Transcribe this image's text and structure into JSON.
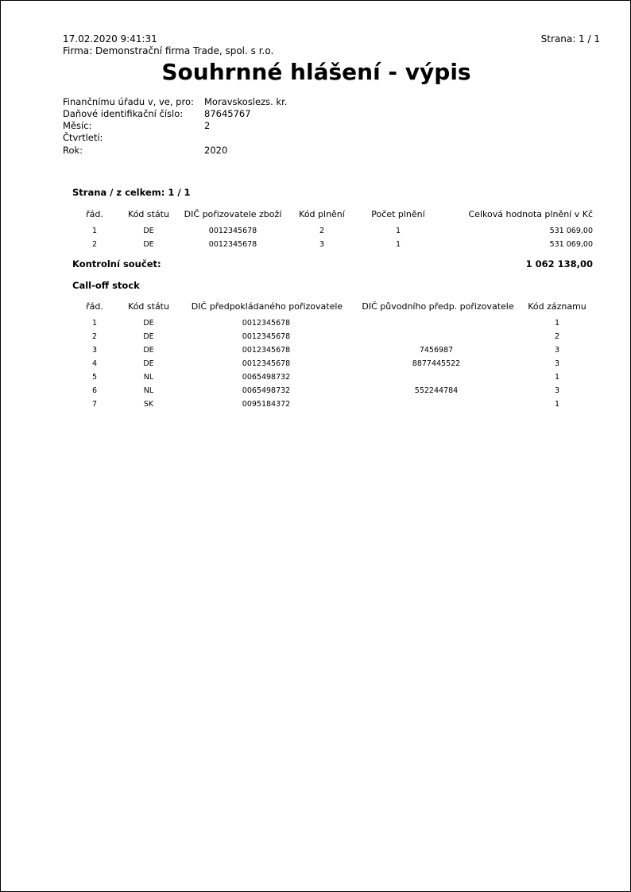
{
  "header": {
    "datetime": "17.02.2020  9:41:31",
    "page": "Strana: 1 / 1",
    "company": "Firma: Demonstrační firma Trade, spol. s r.o."
  },
  "title": "Souhrnné hlášení - výpis",
  "info": [
    {
      "label": "Finančnímu úřadu v, ve, pro:",
      "value": "Moravskoslezs. kr."
    },
    {
      "label": "Daňové identifikační číslo:",
      "value": "87645767"
    },
    {
      "label": "Měsíc:",
      "value": "2"
    },
    {
      "label": "Čtvrtletí:",
      "value": ""
    },
    {
      "label": "Rok:",
      "value": "2020"
    }
  ],
  "section1": {
    "heading": "Strana / z celkem: 1 / 1",
    "columns": [
      "řád.",
      "Kód státu",
      "DIČ pořizovatele zboží",
      "Kód plnění",
      "Počet plnění",
      "Celková hodnota plnění v Kč"
    ],
    "rows": [
      [
        "1",
        "DE",
        "0012345678",
        "2",
        "1",
        "531 069,00"
      ],
      [
        "2",
        "DE",
        "0012345678",
        "3",
        "1",
        "531 069,00"
      ]
    ],
    "total_label": "Kontrolní součet:",
    "total_value": "1 062 138,00"
  },
  "section2": {
    "heading": "Call-off stock",
    "columns": [
      "řád.",
      "Kód státu",
      "DIČ předpokládaného pořizovatele",
      "DIČ původního předp. pořizovatele",
      "Kód záznamu"
    ],
    "rows": [
      [
        "1",
        "DE",
        "0012345678",
        "",
        "1"
      ],
      [
        "2",
        "DE",
        "0012345678",
        "",
        "2"
      ],
      [
        "3",
        "DE",
        "0012345678",
        "7456987",
        "3"
      ],
      [
        "4",
        "DE",
        "0012345678",
        "8877445522",
        "3"
      ],
      [
        "5",
        "NL",
        "0065498732",
        "",
        "1"
      ],
      [
        "6",
        "NL",
        "0065498732",
        "552244784",
        "3"
      ],
      [
        "7",
        "SK",
        "0095184372",
        "",
        "1"
      ]
    ]
  }
}
